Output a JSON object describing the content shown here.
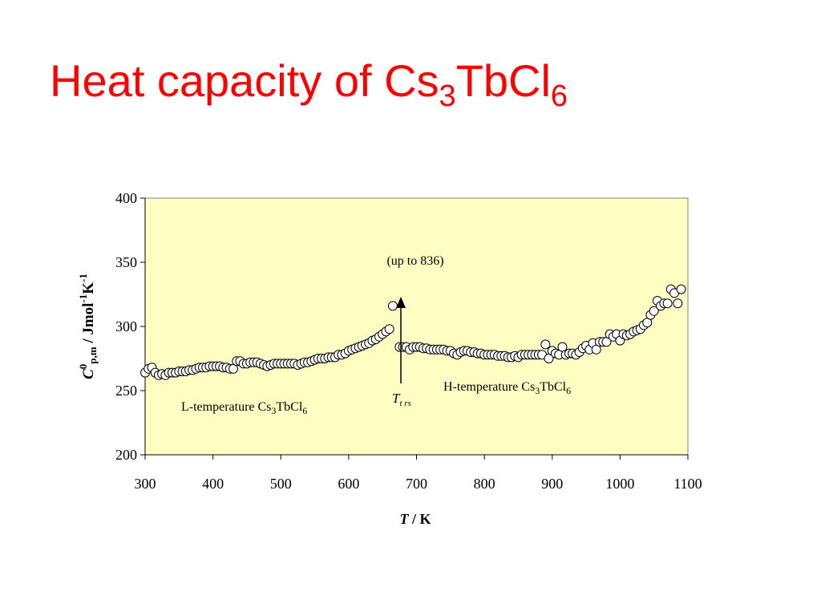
{
  "chart_data": {
    "type": "scatter",
    "title": [
      "Heat capacity of Cs",
      "3",
      "TbCl",
      "6"
    ],
    "xlabel": [
      "T",
      " / K"
    ],
    "ylabel": [
      "C",
      "0",
      "p,m",
      " / Jmol",
      "-1",
      "K",
      "-1"
    ],
    "annotations": {
      "peak": "(up to 836)",
      "low_phase": [
        "L-temperature Cs",
        "3",
        "TbCl",
        "6"
      ],
      "high_phase": [
        "H-temperature Cs",
        "3",
        "TbCl",
        "6"
      ],
      "transition": [
        "T",
        "t rs"
      ]
    },
    "xlim": [
      300,
      1100
    ],
    "xticks": [
      300,
      400,
      500,
      600,
      700,
      800,
      900,
      1000,
      1100
    ],
    "ylim": [
      200,
      400
    ],
    "yticks": [
      200,
      250,
      300,
      350,
      400
    ],
    "background": "#ffffc4",
    "marker_fill": "#ffffff",
    "marker_stroke": "#000000",
    "series": [
      {
        "x": [
          300,
          305,
          310,
          315,
          320,
          325,
          330,
          335,
          340,
          345,
          350,
          355,
          360,
          365,
          370,
          375,
          380,
          385,
          390,
          395,
          400,
          405,
          410,
          415,
          420,
          425,
          430,
          435,
          440,
          445,
          450,
          455,
          460,
          465,
          470,
          475,
          480,
          485,
          490,
          495,
          500,
          505,
          510,
          515,
          520,
          525,
          530,
          535,
          540,
          545,
          550,
          555,
          560,
          565,
          570,
          575,
          580,
          585,
          590,
          595,
          600,
          605,
          610,
          615,
          620,
          625,
          630,
          635,
          640,
          645,
          650,
          655,
          660,
          665
        ],
        "values": [
          264,
          267,
          268,
          264,
          262,
          263,
          262,
          264,
          264,
          264,
          265,
          265,
          265,
          266,
          266,
          267,
          268,
          268,
          268,
          269,
          269,
          269,
          269,
          268,
          268,
          267,
          267,
          273,
          273,
          271,
          271,
          272,
          272,
          272,
          271,
          270,
          269,
          270,
          271,
          271,
          271,
          271,
          271,
          271,
          271,
          270,
          271,
          272,
          272,
          273,
          274,
          275,
          275,
          275,
          276,
          276,
          276,
          278,
          278,
          279,
          281,
          282,
          283,
          284,
          285,
          286,
          287,
          289,
          290,
          292,
          294,
          296,
          298,
          316
        ]
      },
      {
        "x": [
          675,
          680,
          685,
          690,
          695,
          700,
          705,
          710,
          715,
          720,
          725,
          730,
          735,
          740,
          745,
          750,
          755,
          760,
          765,
          770,
          775,
          780,
          785,
          790,
          795,
          800,
          805,
          810,
          815,
          820,
          825,
          830,
          835,
          840,
          845,
          850,
          855,
          860,
          865,
          870,
          875,
          880,
          885,
          890,
          895,
          900,
          905,
          910,
          915,
          920,
          925,
          930,
          935,
          940,
          945,
          950,
          955,
          960,
          965,
          970,
          975,
          980,
          985,
          990,
          995,
          1000,
          1005,
          1010,
          1015,
          1020,
          1025,
          1030,
          1035,
          1040,
          1045,
          1050,
          1055,
          1060,
          1065,
          1070,
          1075,
          1080,
          1085,
          1090
        ],
        "values": [
          284,
          284,
          284,
          282,
          284,
          284,
          284,
          283,
          283,
          282,
          282,
          282,
          282,
          282,
          281,
          281,
          279,
          278,
          280,
          281,
          281,
          280,
          280,
          279,
          279,
          278,
          278,
          278,
          278,
          277,
          277,
          277,
          276,
          276,
          277,
          276,
          278,
          278,
          278,
          278,
          278,
          278,
          278,
          286,
          275,
          281,
          279,
          278,
          284,
          278,
          279,
          279,
          278,
          280,
          283,
          285,
          282,
          287,
          282,
          288,
          288,
          288,
          294,
          292,
          294,
          289,
          294,
          293,
          294,
          296,
          297,
          298,
          301,
          303,
          309,
          312,
          320,
          316,
          318,
          318,
          329,
          326,
          318,
          329
        ]
      }
    ]
  }
}
